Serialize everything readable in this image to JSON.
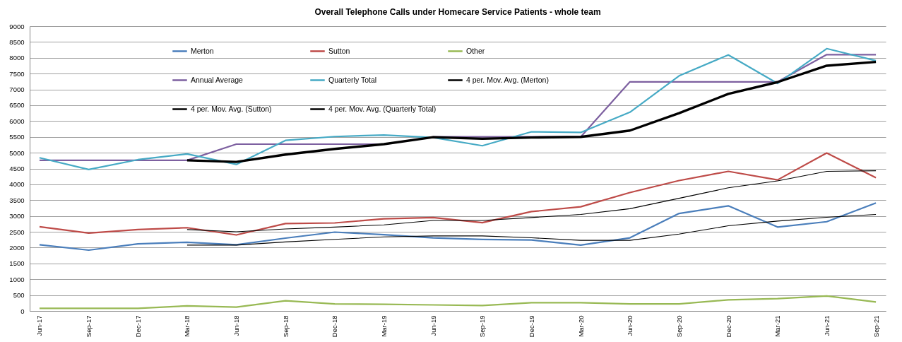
{
  "chart_data": {
    "type": "line",
    "title": "Overall Telephone Calls under Homecare Service Patients - whole team",
    "categories": [
      "Jun-17",
      "Sep-17",
      "Dec-17",
      "Mar-18",
      "Jun-18",
      "Sep-18",
      "Dec-18",
      "Mar-19",
      "Jun-19",
      "Sep-19",
      "Dec-19",
      "Mar-20",
      "Jun-20",
      "Sep-20",
      "Dec-20",
      "Mar-21",
      "Jun-21",
      "Sep-21"
    ],
    "series": [
      {
        "name": "Merton",
        "color": "#4a7ebb",
        "values": [
          2090,
          1920,
          2120,
          2170,
          2090,
          2300,
          2490,
          2410,
          2310,
          2260,
          2240,
          2080,
          2310,
          3080,
          3320,
          2650,
          2820,
          3410
        ]
      },
      {
        "name": "Sutton",
        "color": "#be4b48",
        "values": [
          2660,
          2460,
          2570,
          2630,
          2400,
          2760,
          2780,
          2910,
          2950,
          2790,
          3140,
          3290,
          3740,
          4120,
          4410,
          4140,
          4990,
          4210
        ]
      },
      {
        "name": "Other",
        "color": "#98b954",
        "values": [
          80,
          80,
          80,
          160,
          120,
          320,
          220,
          210,
          190,
          170,
          260,
          260,
          220,
          220,
          350,
          390,
          470,
          280
        ]
      },
      {
        "name": "Annual Average",
        "color": "#7d60a0",
        "values": [
          4760,
          4760,
          4760,
          4760,
          5270,
          5270,
          5270,
          5270,
          5500,
          5500,
          5500,
          5500,
          7240,
          7240,
          7240,
          7240,
          8100,
          8100
        ]
      },
      {
        "name": "Quarterly Total",
        "color": "#46aac5",
        "values": [
          4840,
          4470,
          4780,
          4960,
          4630,
          5390,
          5510,
          5560,
          5480,
          5220,
          5660,
          5640,
          6280,
          7430,
          8090,
          7190,
          8290,
          7910
        ]
      },
      {
        "name": "4 per. Mov. Avg. (Merton)",
        "color": "#000000",
        "values": [
          null,
          null,
          null,
          2080,
          2080,
          2180,
          2260,
          2340,
          2370,
          2370,
          2310,
          2230,
          2230,
          2430,
          2690,
          2840,
          2960,
          3050
        ]
      },
      {
        "name": "4 per. Mov. Avg. (Sutton)",
        "color": "#000000",
        "values": [
          null,
          null,
          null,
          2570,
          2500,
          2590,
          2650,
          2720,
          2860,
          2860,
          2950,
          3050,
          3230,
          3560,
          3890,
          4110,
          4410,
          4430
        ]
      },
      {
        "name": "4 per. Mov. Avg. (Quarterly Total)",
        "color": "#000000",
        "values": [
          null,
          null,
          null,
          4760,
          4710,
          4940,
          5120,
          5270,
          5490,
          5440,
          5480,
          5500,
          5700,
          6250,
          6860,
          7230,
          7750,
          7870
        ]
      }
    ],
    "ylim": [
      0,
      9000
    ],
    "yticks": [
      0,
      500,
      1000,
      1500,
      2000,
      2500,
      3000,
      3500,
      4000,
      4500,
      5000,
      5500,
      6000,
      6500,
      7000,
      7500,
      8000,
      8500,
      9000
    ],
    "grid": "y",
    "legend": "top"
  }
}
